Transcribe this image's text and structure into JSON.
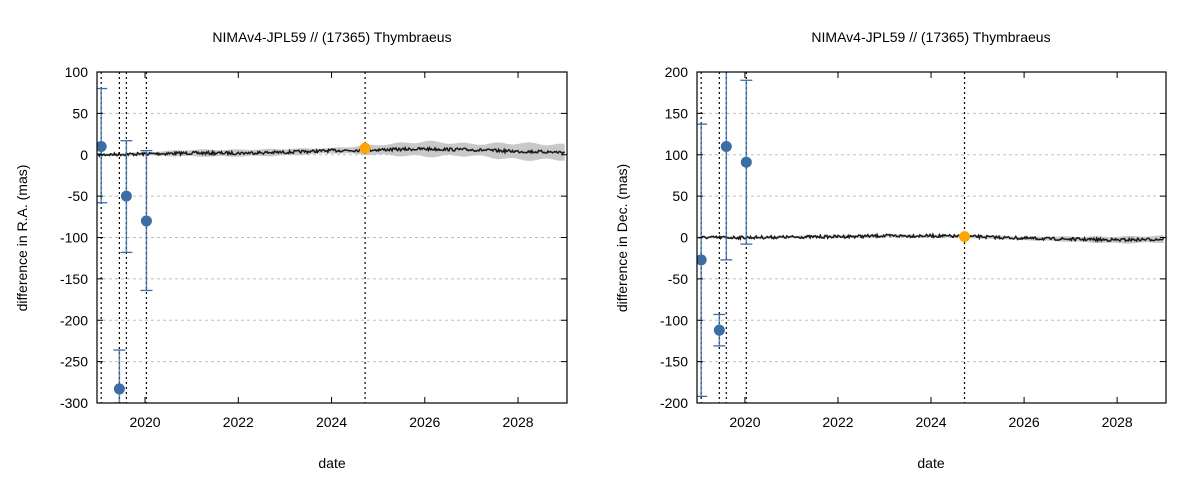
{
  "chart_data": [
    {
      "type": "scatter",
      "title": "NIMAv4-JPL59 // (17365) Thymbraeus",
      "xlabel": "date",
      "ylabel": "difference in R.A. (mas)",
      "xlim": [
        2018.97,
        2029.05
      ],
      "ylim": [
        -300,
        100
      ],
      "xticks": [
        2020,
        2022,
        2024,
        2026,
        2028
      ],
      "yticks": [
        -300,
        -250,
        -200,
        -150,
        -100,
        -50,
        0,
        50,
        100
      ],
      "grid": "horizontal dotted",
      "legend": "none",
      "colors": {
        "observations": "#3a6ea5",
        "highlight": "#ffa500",
        "model": "#1a1a1a",
        "band": "#c8c8c8"
      },
      "observations": [
        {
          "x": 2019.06,
          "y": 10,
          "err_low": -58,
          "err_high": 80
        },
        {
          "x": 2019.45,
          "y": -283,
          "err_low": -300,
          "err_high": -236
        },
        {
          "x": 2019.6,
          "y": -50,
          "err_low": -118,
          "err_high": 17
        },
        {
          "x": 2020.03,
          "y": -80,
          "err_low": -164,
          "err_high": 5
        }
      ],
      "highlight_point": {
        "x": 2024.72,
        "y": 8
      },
      "vertical_markers": [
        2019.06,
        2019.45,
        2019.6,
        2020.03,
        2024.72
      ],
      "model_curve": {
        "x": [
          2019,
          2020,
          2021,
          2022,
          2023,
          2024,
          2025,
          2026,
          2027,
          2028,
          2029
        ],
        "y": [
          0,
          1,
          2,
          2,
          3,
          5,
          6,
          7,
          6,
          4,
          3
        ],
        "uncertainty": [
          1,
          2,
          4,
          4,
          4,
          3,
          6,
          9,
          7,
          10,
          9
        ]
      }
    },
    {
      "type": "scatter",
      "title": "NIMAv4-JPL59 // (17365) Thymbraeus",
      "xlabel": "date",
      "ylabel": "difference in Dec. (mas)",
      "xlim": [
        2018.97,
        2029.05
      ],
      "ylim": [
        -200,
        200
      ],
      "xticks": [
        2020,
        2022,
        2024,
        2026,
        2028
      ],
      "yticks": [
        -200,
        -150,
        -100,
        -50,
        0,
        50,
        100,
        150,
        200
      ],
      "grid": "horizontal dotted",
      "legend": "none",
      "colors": {
        "observations": "#3a6ea5",
        "highlight": "#ffa500",
        "model": "#1a1a1a",
        "band": "#c8c8c8"
      },
      "observations": [
        {
          "x": 2019.06,
          "y": -27,
          "err_low": -192,
          "err_high": 137
        },
        {
          "x": 2019.45,
          "y": -112,
          "err_low": -131,
          "err_high": -93
        },
        {
          "x": 2019.6,
          "y": 110,
          "err_low": -27,
          "err_high": 210
        },
        {
          "x": 2020.03,
          "y": 91,
          "err_low": -8,
          "err_high": 190
        }
      ],
      "highlight_point": {
        "x": 2024.72,
        "y": 1
      },
      "vertical_markers": [
        2019.06,
        2019.45,
        2019.6,
        2020.03,
        2024.72
      ],
      "model_curve": {
        "x": [
          2019,
          2020,
          2021,
          2022,
          2023,
          2024,
          2025,
          2026,
          2027,
          2028,
          2029
        ],
        "y": [
          0,
          0,
          0.5,
          1,
          2,
          2,
          1,
          -1,
          -2,
          -3,
          -2
        ],
        "uncertainty": [
          1,
          1,
          1.5,
          1.5,
          1.5,
          1.5,
          2,
          2,
          3,
          4,
          4
        ]
      }
    }
  ]
}
